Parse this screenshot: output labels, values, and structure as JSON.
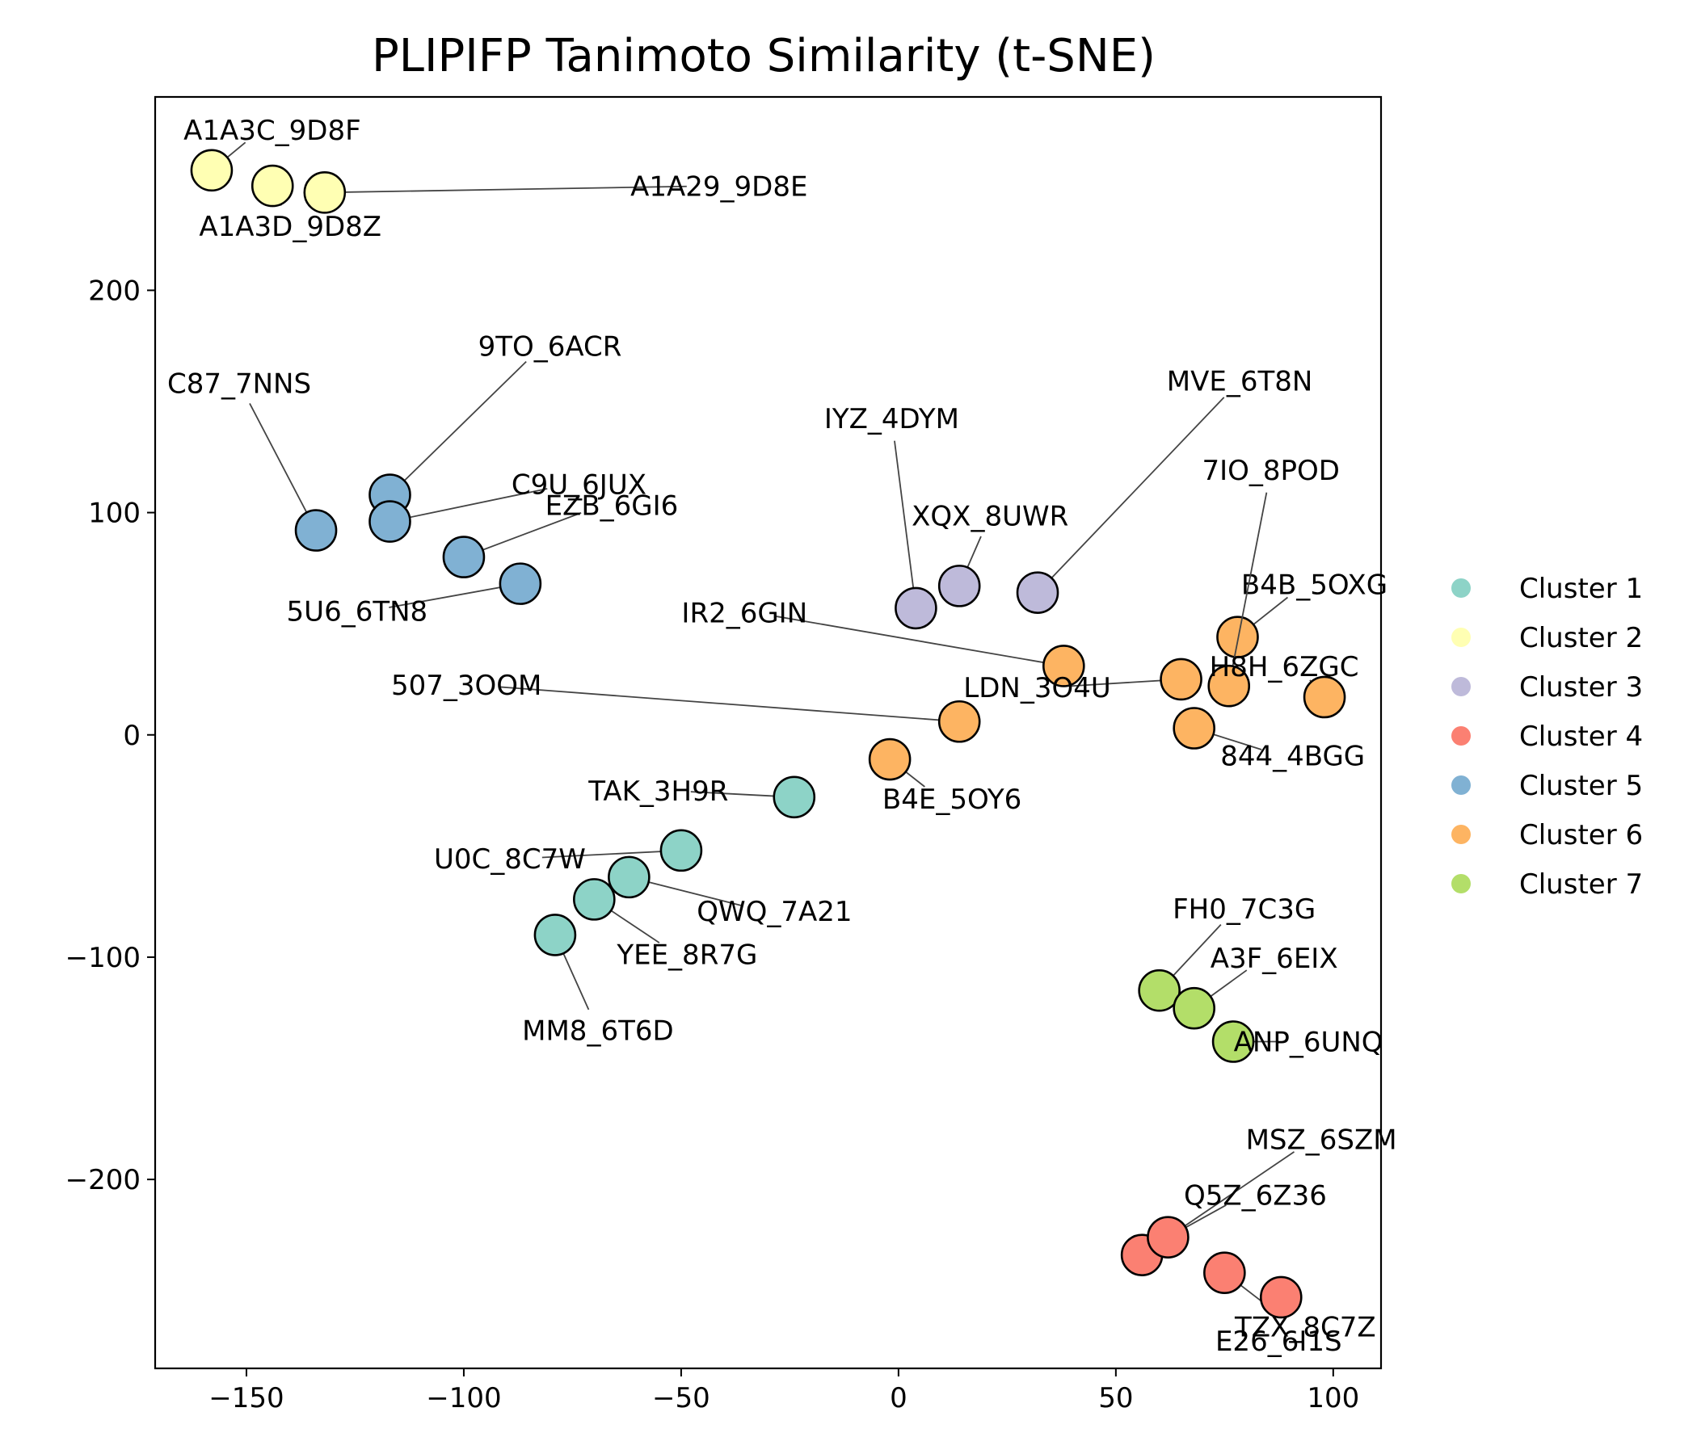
{
  "chart_data": {
    "type": "scatter",
    "title": "PLIPIFP Tanimoto Similarity (t-SNE)",
    "xlabel": "",
    "ylabel": "",
    "xlim": [
      -171,
      111
    ],
    "ylim": [
      -285,
      287
    ],
    "xticks": [
      -150,
      -100,
      -50,
      0,
      50,
      100
    ],
    "yticks": [
      -200,
      -100,
      0,
      100,
      200
    ],
    "xtick_labels": [
      "−150",
      "−100",
      "−50",
      "0",
      "50",
      "100"
    ],
    "ytick_labels": [
      "−200",
      "−100",
      "0",
      "100",
      "200"
    ],
    "grid": false,
    "legend_position": "right-center",
    "series": [
      {
        "name": "Cluster 1",
        "color": "#8dd3c7",
        "points": [
          {
            "label": "TAK_3H9R",
            "x": -24,
            "y": -28
          },
          {
            "label": "U0C_8C7W",
            "x": -50,
            "y": -52
          },
          {
            "label": "QWQ_7A21",
            "x": -62,
            "y": -64
          },
          {
            "label": "YEE_8R7G",
            "x": -70,
            "y": -74
          },
          {
            "label": "MM8_6T6D",
            "x": -79,
            "y": -90
          }
        ]
      },
      {
        "name": "Cluster 2",
        "color": "#ffffb3",
        "points": [
          {
            "label": "A1A3C_9D8F",
            "x": -158,
            "y": 254
          },
          {
            "label": "A1A3D_9D8Z",
            "x": -144,
            "y": 247
          },
          {
            "label": "A1A29_9D8E",
            "x": -132,
            "y": 244
          }
        ]
      },
      {
        "name": "Cluster 3",
        "color": "#bebada",
        "points": [
          {
            "label": "IYZ_4DYM",
            "x": 4,
            "y": 57
          },
          {
            "label": "XQX_8UWR",
            "x": 14,
            "y": 67
          },
          {
            "label": "MVE_6T8N",
            "x": 32,
            "y": 64
          }
        ]
      },
      {
        "name": "Cluster 4",
        "color": "#fb8072",
        "points": [
          {
            "label": "MSZ_6SZM",
            "x": 56,
            "y": -234
          },
          {
            "label": "Q5Z_6Z36",
            "x": 62,
            "y": -226
          },
          {
            "label": "TZX_8C7Z",
            "x": 75,
            "y": -242
          },
          {
            "label": "E26_6I1S",
            "x": 88,
            "y": -253
          }
        ]
      },
      {
        "name": "Cluster 5",
        "color": "#80b1d3",
        "points": [
          {
            "label": "C87_7NNS",
            "x": -134,
            "y": 92
          },
          {
            "label": "9TO_6ACR",
            "x": -117,
            "y": 108
          },
          {
            "label": "C9U_6JUX",
            "x": -117,
            "y": 96
          },
          {
            "label": "EZB_6GI6",
            "x": -100,
            "y": 80
          },
          {
            "label": "5U6_6TN8",
            "x": -87,
            "y": 68
          }
        ]
      },
      {
        "name": "Cluster 6",
        "color": "#fdb462",
        "points": [
          {
            "label": "IR2_6GIN",
            "x": 38,
            "y": 31
          },
          {
            "label": "507_3OOM",
            "x": 14,
            "y": 6
          },
          {
            "label": "B4E_5OY6",
            "x": -2,
            "y": -11
          },
          {
            "label": "LDN_3O4U",
            "x": 65,
            "y": 25
          },
          {
            "label": "B4B_5OXG",
            "x": 78,
            "y": 44
          },
          {
            "label": "7IO_8POD",
            "x": 76,
            "y": 22
          },
          {
            "label": "H8H_6ZGC",
            "x": 98,
            "y": 17
          },
          {
            "label": "844_4BGG",
            "x": 68,
            "y": 3
          }
        ]
      },
      {
        "name": "Cluster 7",
        "color": "#b3de69",
        "points": [
          {
            "label": "FH0_7C3G",
            "x": 60,
            "y": -115
          },
          {
            "label": "A3F_6EIX",
            "x": 68,
            "y": -123
          },
          {
            "label": "ANP_6UNQ",
            "x": 77,
            "y": -138
          }
        ]
      }
    ]
  }
}
